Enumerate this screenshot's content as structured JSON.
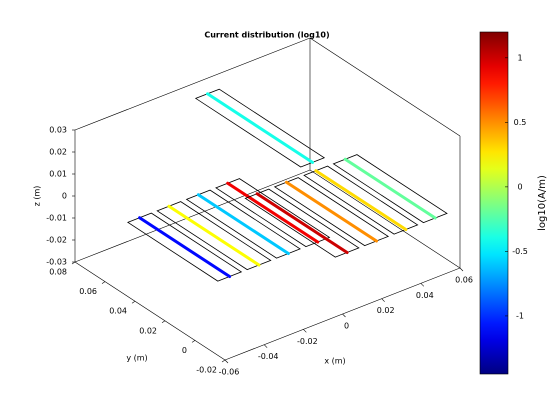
{
  "chart_data": {
    "type": "line3d",
    "title": "Current distribution (log10)",
    "xlabel": "x (m)",
    "ylabel": "y (m)",
    "zlabel": "z (m)",
    "xlim": [
      -0.06,
      0.06
    ],
    "ylim": [
      -0.02,
      0.08
    ],
    "zlim": [
      -0.03,
      0.03
    ],
    "xticks": [
      -0.06,
      -0.04,
      -0.02,
      0,
      0.02,
      0.04,
      0.06
    ],
    "yticks": [
      -0.02,
      0,
      0.02,
      0.04,
      0.06,
      0.08
    ],
    "zticks": [
      -0.03,
      -0.02,
      -0.01,
      0,
      0.01,
      0.02,
      0.03
    ],
    "elements": {
      "x": [
        -0.05,
        -0.035,
        -0.02,
        -0.005,
        0.01,
        0.025,
        0.04,
        0.055,
        0.0
      ],
      "y0": [
        -0.01,
        -0.01,
        -0.01,
        -0.01,
        -0.01,
        -0.01,
        -0.01,
        -0.01,
        0.0
      ],
      "y1": [
        0.05,
        0.05,
        0.05,
        0.05,
        0.05,
        0.05,
        0.05,
        0.05,
        0.07
      ],
      "z": [
        0,
        0,
        0,
        0,
        -0.01,
        -0.01,
        -0.01,
        -0.01,
        0.03
      ],
      "values": [
        -1.1,
        0.2,
        -0.6,
        0.9,
        1.0,
        0.5,
        0.3,
        -0.2,
        -0.4
      ]
    },
    "colorbar": {
      "label": "log10(A/m)",
      "clim": [
        -1.45,
        1.2
      ],
      "ticks": [
        -1,
        -0.5,
        0,
        0.5,
        1
      ],
      "colormap": "jet"
    }
  }
}
